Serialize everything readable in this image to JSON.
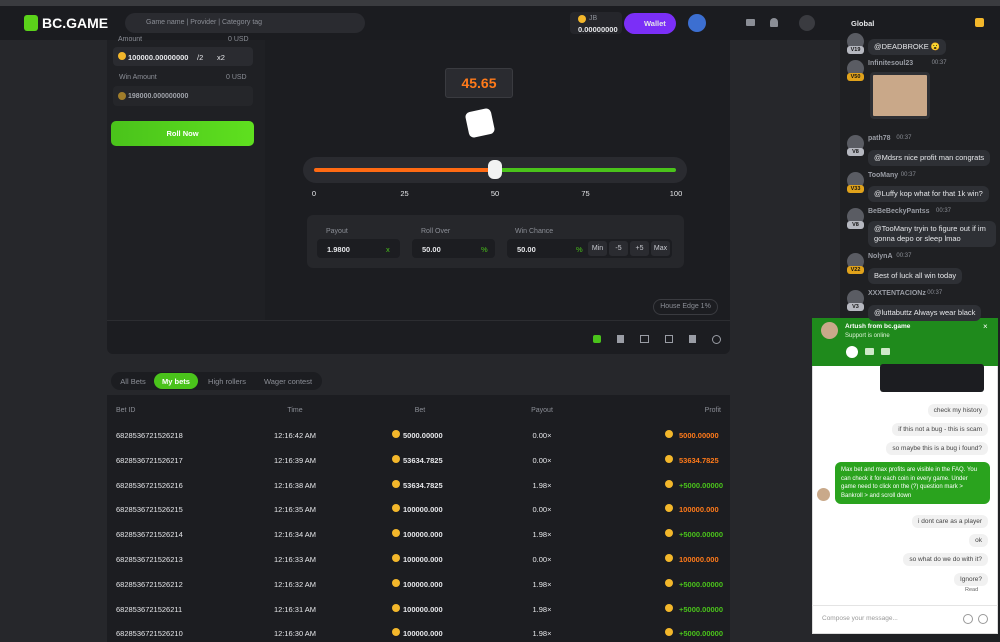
{
  "header": {
    "logo": "BC.GAME",
    "search_placeholder": "Game name | Provider | Category tag",
    "currency": "JB",
    "balance": "0.00000000",
    "wallet": "Wallet",
    "chat_tab": "Global"
  },
  "bet_panel": {
    "amount_label": "Amount",
    "amount_usd": "0 USD",
    "amount": "100000.00000000",
    "half": "/2",
    "double": "x2",
    "win_amount_label": "Win Amount",
    "win_amount_usd": "0 USD",
    "win_amount": "198000.000000000",
    "roll_button": "Roll Now"
  },
  "game": {
    "result": "45.65",
    "slider_labels": [
      "0",
      "25",
      "50",
      "75",
      "100"
    ],
    "payout_label": "Payout",
    "payout": "1.9800",
    "payout_unit": "x",
    "roll_over_label": "Roll Over",
    "roll_over": "50.00",
    "roll_over_unit": "%",
    "win_chance_label": "Win Chance",
    "win_chance": "50.00",
    "win_chance_unit": "%",
    "buttons": [
      "Min",
      "-5",
      "+5",
      "Max"
    ],
    "house_edge": "House Edge 1%"
  },
  "tabs": [
    "All Bets",
    "My bets",
    "High rollers",
    "Wager contest"
  ],
  "table": {
    "columns": [
      "Bet ID",
      "Time",
      "Bet",
      "Payout",
      "Profit"
    ],
    "rows": [
      [
        "6828536721526218",
        "12:16:42 AM",
        "5000.00000",
        "0.00×",
        "5000.00000"
      ],
      [
        "6828536721526217",
        "12:16:39 AM",
        "53634.7825",
        "0.00×",
        "53634.7825"
      ],
      [
        "6828536721526216",
        "12:16:38 AM",
        "53634.7825",
        "1.98×",
        "+5000.00000"
      ],
      [
        "6828536721526215",
        "12:16:35 AM",
        "100000.000",
        "0.00×",
        "100000.000"
      ],
      [
        "6828536721526214",
        "12:16:34 AM",
        "100000.000",
        "1.98×",
        "+5000.00000"
      ],
      [
        "6828536721526213",
        "12:16:33 AM",
        "100000.000",
        "0.00×",
        "100000.000"
      ],
      [
        "6828536721526212",
        "12:16:32 AM",
        "100000.000",
        "1.98×",
        "+5000.00000"
      ],
      [
        "6828536721526211",
        "12:16:31 AM",
        "100000.000",
        "1.98×",
        "+5000.00000"
      ],
      [
        "6828536721526210",
        "12:16:30 AM",
        "100000.000",
        "1.98×",
        "+5000.00000"
      ]
    ]
  },
  "chat": {
    "messages": [
      {
        "level": "V19",
        "text": "@DEADBROKE 😮"
      },
      {
        "user": "Infinitesoul23",
        "time": "00:37",
        "level": "V50"
      },
      {
        "user": "path78",
        "time": "00:37",
        "level": "V8",
        "text": "@Mdsrs nice profit man congrats"
      },
      {
        "user": "TooMany",
        "time": "00:37",
        "level": "V33",
        "text": "@Luffy kop what for that 1k win?"
      },
      {
        "user": "BeBeBeckyPantss",
        "time": "00:37",
        "level": "V8",
        "text": "@TooMany tryin to figure out if im gonna depo or sleep lmao"
      },
      {
        "user": "NolynA",
        "time": "00:37",
        "level": "V22",
        "text": "Best of luck all win today"
      },
      {
        "user": "XXXTENTACIONz",
        "time": "00:37",
        "level": "V3",
        "text": "@luttabuttz Always wear black"
      }
    ]
  },
  "support": {
    "agent": "Artush from bc.game",
    "status": "Support is online",
    "user_messages_before": [
      "check my history",
      "if this not a bug - this is scam",
      "so maybe this is a bug i found?"
    ],
    "agent_message": "Max bet and max profits are visible in the FAQ. You can check it for each coin in every game. Under game need to click on the (?) question mark > Bankroll > and scroll down",
    "user_messages_after": [
      "i dont care as a player",
      "ok",
      "so what do we do with it?",
      "Ignore?"
    ],
    "read_status": "Read",
    "compose_placeholder": "Compose your message..."
  }
}
